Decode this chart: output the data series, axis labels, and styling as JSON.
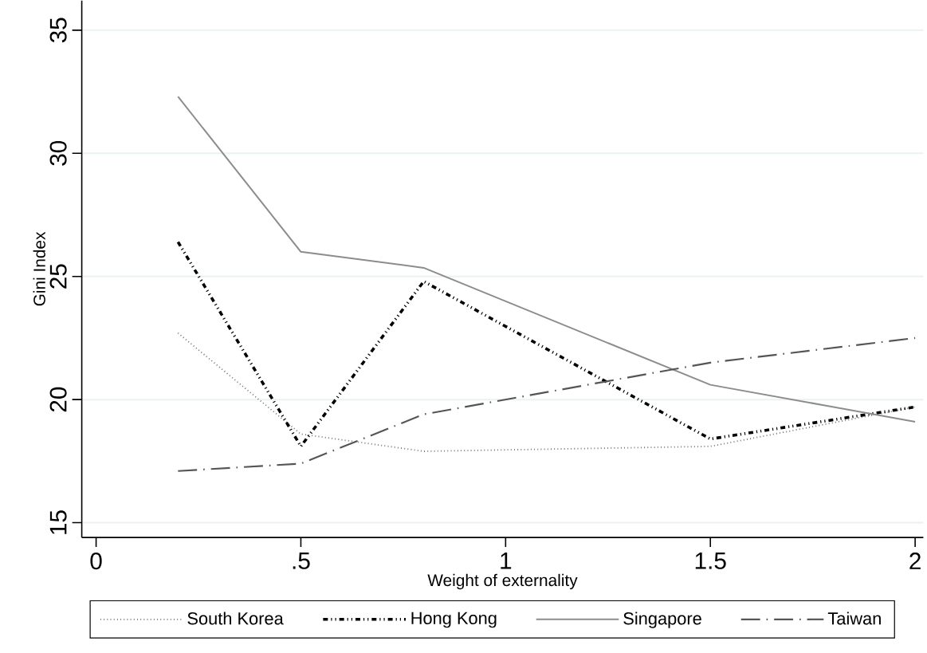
{
  "chart_data": {
    "type": "line",
    "xlabel": "Weight of externality",
    "ylabel": "Gini Index",
    "x": [
      0.2,
      0.5,
      0.8,
      1.5,
      2
    ],
    "series": [
      {
        "name": "South Korea",
        "color": "#707070",
        "line_style": "dotted",
        "values": [
          22.7,
          18.6,
          17.9,
          18.1,
          19.7
        ]
      },
      {
        "name": "Hong Kong",
        "color": "#000000",
        "line_style": "dashdotdotted",
        "values": [
          26.4,
          18.1,
          24.8,
          18.4,
          19.7
        ]
      },
      {
        "name": "Singapore",
        "color": "#8c8c8c",
        "line_style": "solid",
        "values": [
          32.3,
          26.0,
          25.35,
          20.6,
          19.1
        ]
      },
      {
        "name": "Taiwan",
        "color": "#555555",
        "line_style": "dashdotted",
        "values": [
          17.1,
          17.4,
          19.4,
          21.5,
          22.5
        ]
      }
    ],
    "xlim": [
      -0.035,
      2.02
    ],
    "ylim": [
      14.4,
      36.2
    ],
    "xticks": [
      0,
      {
        "value": 0.5,
        "label": ".5"
      },
      1,
      1.5,
      2
    ],
    "yticks": [
      15,
      20,
      25,
      30,
      35
    ],
    "grid": "y",
    "legend": "bottom"
  }
}
